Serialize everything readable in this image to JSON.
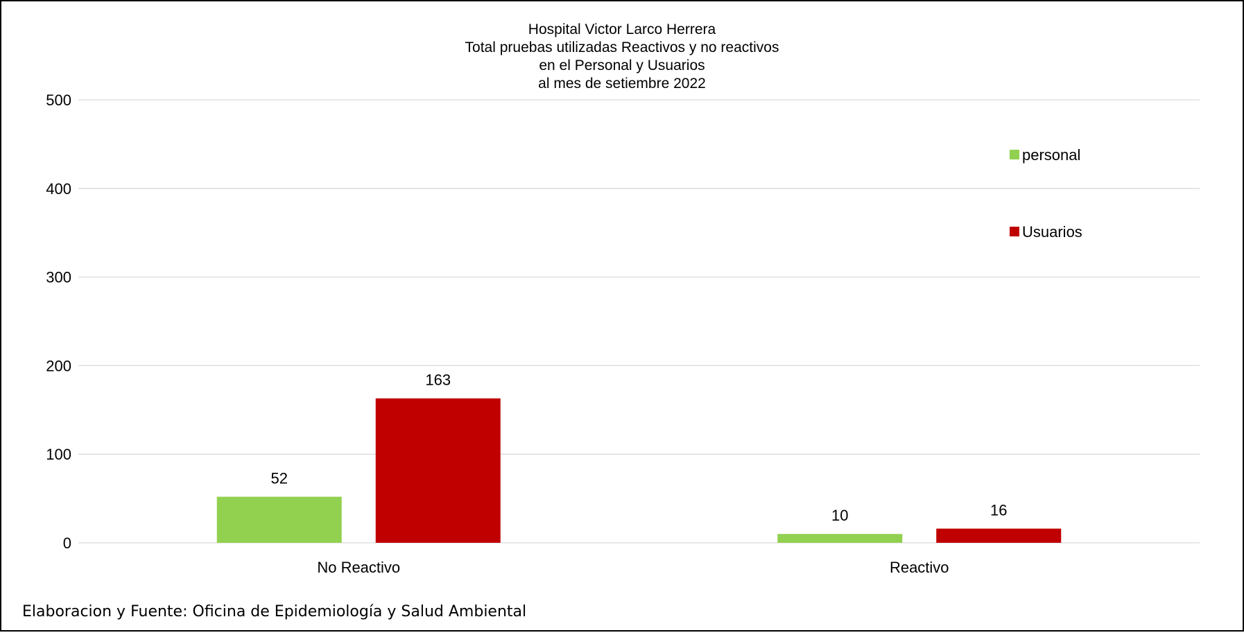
{
  "chart_data": {
    "type": "bar",
    "title_lines": [
      "Hospital Victor Larco Herrera",
      "Total pruebas utilizadas Reactivos y no reactivos",
      "en el Personal y Usuarios",
      "al mes de setiembre 2022"
    ],
    "categories": [
      "No Reactivo",
      "Reactivo"
    ],
    "series": [
      {
        "name": "personal",
        "color": "#92d050",
        "values": [
          52,
          10
        ]
      },
      {
        "name": "Usuarios",
        "color": "#c00000",
        "values": [
          163,
          16
        ]
      }
    ],
    "ylim": [
      0,
      500
    ],
    "yticks": [
      0,
      100,
      200,
      300,
      400,
      500
    ],
    "grid": true,
    "legend_position": "right",
    "source_note": "Elaboracion y Fuente: Oficina de Epidemiología y Salud Ambiental"
  }
}
